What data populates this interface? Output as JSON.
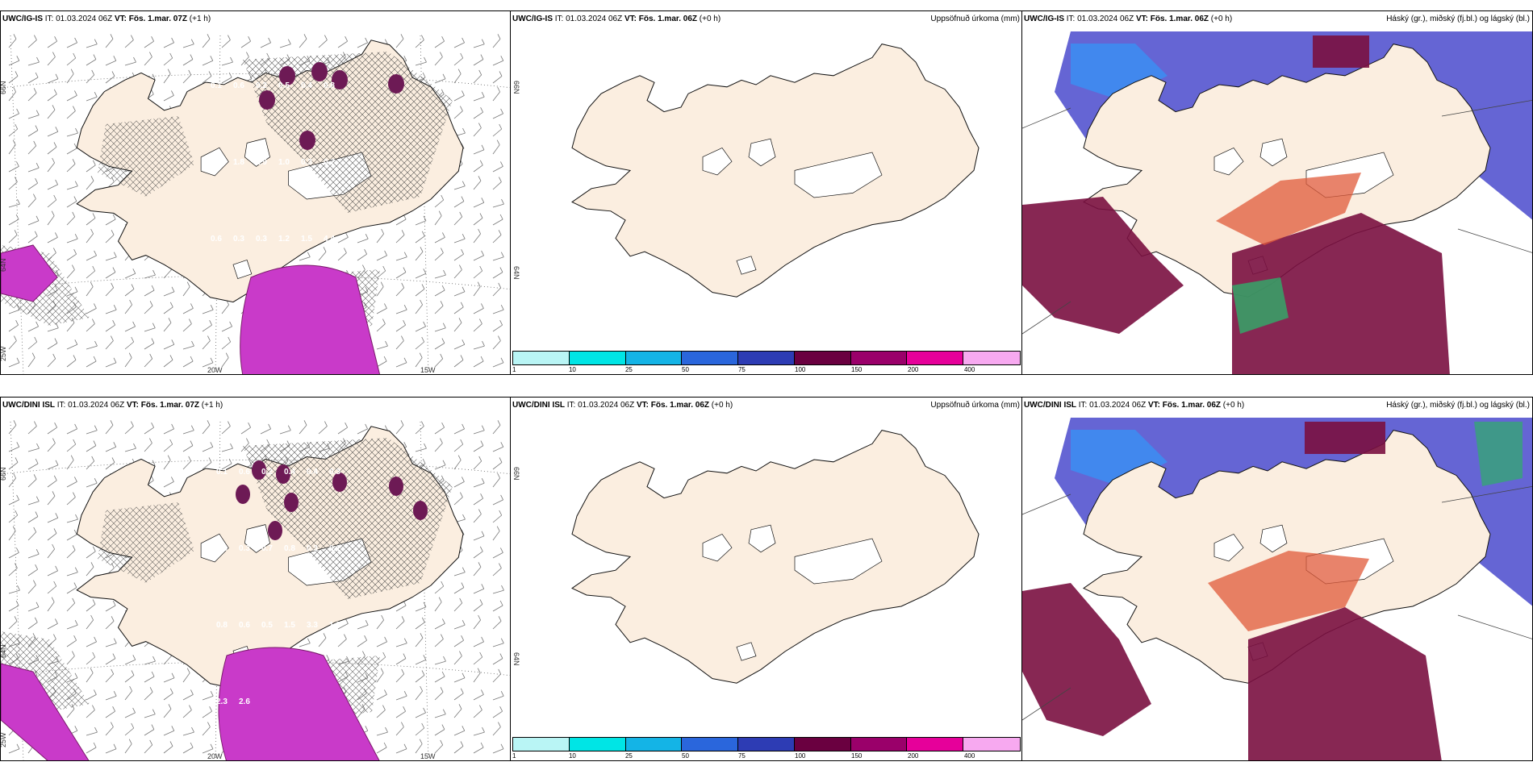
{
  "rows": [
    {
      "model": "UWC/IG-IS",
      "wind_panel": {
        "model": "UWC/IG-IS",
        "it_label": "IT:",
        "it_value": "01.03.2024 06Z",
        "vt_label": "VT:",
        "vt_value": "Fös. 1.mar. 07Z",
        "lead": "(+1 h)",
        "grid_labels": {
          "lat_top": "66N",
          "lat_mid": "64N",
          "lon_left": "25W",
          "lon_mid": "20W",
          "lon_right": "15W"
        },
        "contour_values": [
          "0.1",
          "0.6",
          "0.2",
          "0.5",
          "0.4",
          "0.8",
          "0.2",
          "1.8",
          "1.9",
          "1.0",
          "0.3",
          "0.7",
          "0.6",
          "0.3",
          "0.3",
          "1.2",
          "1.5",
          "4.4"
        ]
      },
      "precip_panel": {
        "model": "UWC/IG-IS",
        "it_label": "IT:",
        "it_value": "01.03.2024 06Z",
        "vt_label": "VT:",
        "vt_value": "Fös. 1.mar. 06Z",
        "lead": "(+0 h)",
        "title_right": "Uppsöfnuð úrkoma (mm)",
        "lat_label": "66N",
        "lat_label_2": "64N"
      },
      "cloud_panel": {
        "model": "UWC/IG-IS",
        "it_label": "IT:",
        "it_value": "01.03.2024 06Z",
        "vt_label": "VT:",
        "vt_value": "Fös. 1.mar. 06Z",
        "lead": "(+0 h)",
        "title_right": "Háský (gr.), miðský (fj.bl.) og lágský (bl.)"
      }
    },
    {
      "model": "UWC/DINI ISL",
      "wind_panel": {
        "model": "UWC/DINI ISL",
        "it_label": "IT:",
        "it_value": "01.03.2024 06Z",
        "vt_label": "VT:",
        "vt_value": "Fös. 1.mar. 07Z",
        "lead": "(+1 h)",
        "grid_labels": {
          "lat_top": "66N",
          "lat_mid": "64N",
          "lon_left": "25W",
          "lon_mid": "20W",
          "lon_right": "15W"
        },
        "contour_values": [
          "0.1",
          "0.6",
          "0.2",
          "0.4",
          "0.4",
          "0.3",
          "0.6",
          "0.3",
          "0.7",
          "0.8",
          "0.3",
          "0.1",
          "0.8",
          "0.6",
          "0.5",
          "1.5",
          "3.3",
          "1.3",
          "2.3",
          "2.6"
        ]
      },
      "precip_panel": {
        "model": "UWC/DINI ISL",
        "it_label": "IT:",
        "it_value": "01.03.2024 06Z",
        "vt_label": "VT:",
        "vt_value": "Fös. 1.mar. 06Z",
        "lead": "(+0 h)",
        "title_right": "Uppsöfnuð úrkoma (mm)",
        "lat_label": "66N",
        "lat_label_2": "64N"
      },
      "cloud_panel": {
        "model": "UWC/DINI ISL",
        "it_label": "IT:",
        "it_value": "01.03.2024 06Z",
        "vt_label": "VT:",
        "vt_value": "Fös. 1.mar. 06Z",
        "lead": "(+0 h)",
        "title_right": "Háský (gr.), miðský (fj.bl.) og lágský (bl.)"
      }
    }
  ],
  "precip_colorbar": {
    "colors": [
      "#b9f5f5",
      "#00e5e5",
      "#14b4e6",
      "#2a66dc",
      "#2d3cb4",
      "#6a0040",
      "#9a006a",
      "#e6009a",
      "#f7a9f0"
    ],
    "ticks": [
      "1",
      "10",
      "25",
      "50",
      "75",
      "100",
      "150",
      "200",
      "400"
    ]
  },
  "colors": {
    "land": "#fbeee0",
    "coast": "#111111",
    "precip_purple": "#c93ac9",
    "precip_dark": "#6d1a55",
    "cloud_high": "#7a1040",
    "cloud_mid": "#4a4acc",
    "cloud_low": "#2aa0ff"
  }
}
